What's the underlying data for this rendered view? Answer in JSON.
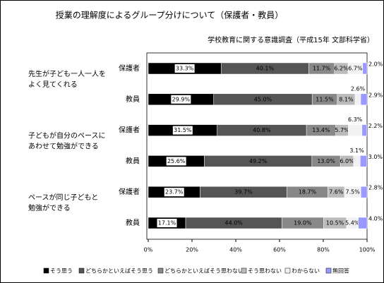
{
  "chart_data": {
    "type": "stacked-bar-horizontal",
    "title": "授業の理解度によるグループ分けについて（保護者・教員）",
    "subtitle": "学校教育に関する意識調査（平成15年 文部科学省）",
    "groups": [
      [
        "先生が子ども一人一人を",
        "よく見てくれる"
      ],
      [
        "子どもが自分のペースに",
        "あわせて勉強ができる"
      ],
      [
        "ペースが同じ子どもと",
        "勉強ができる"
      ]
    ],
    "categories": [
      "保護者",
      "教員",
      "保護者",
      "教員",
      "保護者",
      "教員"
    ],
    "series": [
      {
        "name": "そう思う",
        "color": "#000000",
        "values": [
          33.3,
          29.9,
          31.5,
          25.6,
          23.7,
          17.1
        ],
        "value_labels": [
          "33.3%",
          "29.9%",
          "31.5%",
          "25.6%",
          "23.7%",
          "17.1%"
        ]
      },
      {
        "name": "どちらかといえばそう思う",
        "color": "#555555",
        "values": [
          40.1,
          45.0,
          40.8,
          49.2,
          39.7,
          44.0
        ],
        "value_labels": [
          "40.1%",
          "45.0%",
          "40.8%",
          "49.2%",
          "39.7%",
          "44.0%"
        ]
      },
      {
        "name": "どちらかといえばそう思わない",
        "color": "#888888",
        "values": [
          11.7,
          11.5,
          13.4,
          13.0,
          18.7,
          19.0
        ],
        "value_labels": [
          "11.7%",
          "11.5%",
          "13.4%",
          "13.0%",
          "18.7%",
          "19.0%"
        ]
      },
      {
        "name": "そう思わない",
        "color": "#bbbbbb",
        "values": [
          6.2,
          8.1,
          5.7,
          6.0,
          7.6,
          10.5
        ],
        "value_labels": [
          "6.2%",
          "8.1%",
          "5.7%",
          "6.0%",
          "7.6%",
          "10.5%"
        ]
      },
      {
        "name": "わからない",
        "color": "#f2f2f2",
        "values": [
          6.7,
          2.6,
          6.3,
          3.1,
          7.5,
          5.4
        ],
        "value_labels": [
          "6.7%",
          "2.6%",
          "6.3%",
          "3.1%",
          "7.5%",
          "5.4%"
        ]
      },
      {
        "name": "無回答",
        "color": "#9999ff",
        "values": [
          2.0,
          2.9,
          2.2,
          3.0,
          2.8,
          4.0
        ],
        "value_labels": [
          "2.0%",
          "2.9%",
          "2.2%",
          "3.0%",
          "2.8%",
          "4.0%"
        ]
      }
    ],
    "xlim": [
      0,
      100
    ],
    "xticks": [
      {
        "value": 0,
        "label": "0%"
      },
      {
        "value": 20,
        "label": "20%"
      },
      {
        "value": 40,
        "label": "40%"
      },
      {
        "value": 60,
        "label": "60%"
      },
      {
        "value": 80,
        "label": "80%"
      },
      {
        "value": 100,
        "label": "100%"
      }
    ]
  }
}
